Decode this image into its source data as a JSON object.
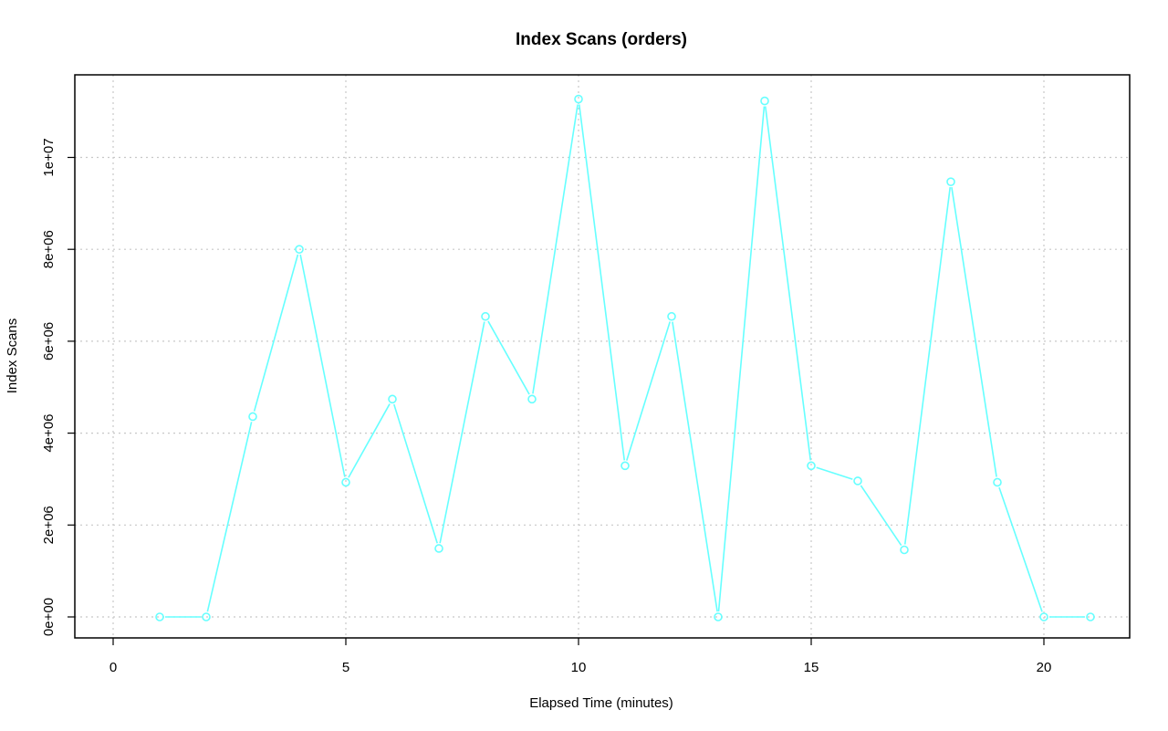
{
  "chart_data": {
    "type": "line",
    "title": "Index Scans (orders)",
    "xlabel": "Elapsed Time (minutes)",
    "ylabel": "Index Scans",
    "xlim": [
      0,
      21
    ],
    "ylim": [
      0,
      11300000
    ],
    "x_ticks": [
      0,
      5,
      10,
      15,
      20
    ],
    "x_tick_labels": [
      "0",
      "5",
      "10",
      "15",
      "20"
    ],
    "y_ticks": [
      0,
      2000000,
      4000000,
      6000000,
      8000000,
      10000000
    ],
    "y_tick_labels": [
      "0e+00",
      "2e+06",
      "4e+06",
      "6e+06",
      "8e+06",
      "1e+07"
    ],
    "grid": true,
    "series": [
      {
        "color": "#66ffff",
        "marker": "circle",
        "x": [
          1,
          2,
          3,
          4,
          5,
          6,
          7,
          8,
          9,
          10,
          11,
          12,
          13,
          14,
          15,
          16,
          17,
          18,
          19,
          20,
          21
        ],
        "y": [
          0,
          0,
          4360000,
          8000000,
          2930000,
          4740000,
          1490000,
          6540000,
          4740000,
          11270000,
          3290000,
          6540000,
          0,
          11230000,
          3290000,
          2960000,
          1460000,
          9470000,
          2930000,
          0,
          0
        ]
      }
    ]
  }
}
